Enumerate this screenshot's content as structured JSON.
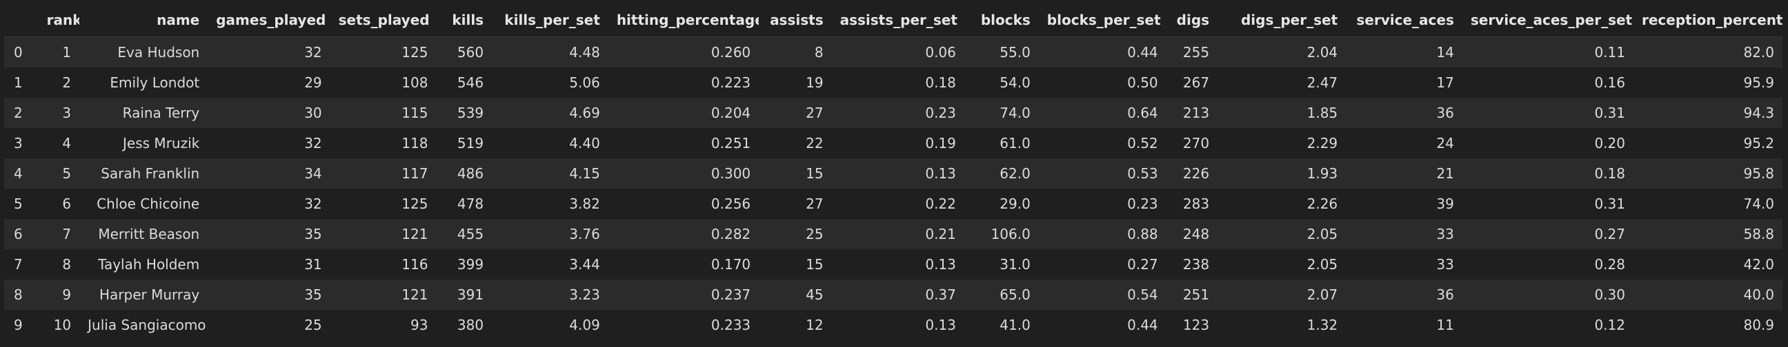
{
  "table": {
    "index_header": "",
    "columns": [
      "rank",
      "name",
      "games_played",
      "sets_played",
      "kills",
      "kills_per_set",
      "hitting_percentage",
      "assists",
      "assists_per_set",
      "blocks",
      "blocks_per_set",
      "digs",
      "digs_per_set",
      "service_aces",
      "service_aces_per_set",
      "reception_percentage"
    ],
    "rows": [
      {
        "index": "0",
        "cells": [
          "1",
          "Eva Hudson",
          "32",
          "125",
          "560",
          "4.48",
          "0.260",
          "8",
          "0.06",
          "55.0",
          "0.44",
          "255",
          "2.04",
          "14",
          "0.11",
          "82.0"
        ]
      },
      {
        "index": "1",
        "cells": [
          "2",
          "Emily Londot",
          "29",
          "108",
          "546",
          "5.06",
          "0.223",
          "19",
          "0.18",
          "54.0",
          "0.50",
          "267",
          "2.47",
          "17",
          "0.16",
          "95.9"
        ]
      },
      {
        "index": "2",
        "cells": [
          "3",
          "Raina Terry",
          "30",
          "115",
          "539",
          "4.69",
          "0.204",
          "27",
          "0.23",
          "74.0",
          "0.64",
          "213",
          "1.85",
          "36",
          "0.31",
          "94.3"
        ]
      },
      {
        "index": "3",
        "cells": [
          "4",
          "Jess Mruzik",
          "32",
          "118",
          "519",
          "4.40",
          "0.251",
          "22",
          "0.19",
          "61.0",
          "0.52",
          "270",
          "2.29",
          "24",
          "0.20",
          "95.2"
        ]
      },
      {
        "index": "4",
        "cells": [
          "5",
          "Sarah Franklin",
          "34",
          "117",
          "486",
          "4.15",
          "0.300",
          "15",
          "0.13",
          "62.0",
          "0.53",
          "226",
          "1.93",
          "21",
          "0.18",
          "95.8"
        ]
      },
      {
        "index": "5",
        "cells": [
          "6",
          "Chloe Chicoine",
          "32",
          "125",
          "478",
          "3.82",
          "0.256",
          "27",
          "0.22",
          "29.0",
          "0.23",
          "283",
          "2.26",
          "39",
          "0.31",
          "74.0"
        ]
      },
      {
        "index": "6",
        "cells": [
          "7",
          "Merritt Beason",
          "35",
          "121",
          "455",
          "3.76",
          "0.282",
          "25",
          "0.21",
          "106.0",
          "0.88",
          "248",
          "2.05",
          "33",
          "0.27",
          "58.8"
        ]
      },
      {
        "index": "7",
        "cells": [
          "8",
          "Taylah Holdem",
          "31",
          "116",
          "399",
          "3.44",
          "0.170",
          "15",
          "0.13",
          "31.0",
          "0.27",
          "238",
          "2.05",
          "33",
          "0.28",
          "42.0"
        ]
      },
      {
        "index": "8",
        "cells": [
          "9",
          "Harper Murray",
          "35",
          "121",
          "391",
          "3.23",
          "0.237",
          "45",
          "0.37",
          "65.0",
          "0.54",
          "251",
          "2.07",
          "36",
          "0.30",
          "40.0"
        ]
      },
      {
        "index": "9",
        "cells": [
          "10",
          "Julia Sangiacomo",
          "25",
          "93",
          "380",
          "4.09",
          "0.233",
          "12",
          "0.13",
          "41.0",
          "0.44",
          "123",
          "1.32",
          "11",
          "0.12",
          "80.9"
        ]
      }
    ]
  }
}
